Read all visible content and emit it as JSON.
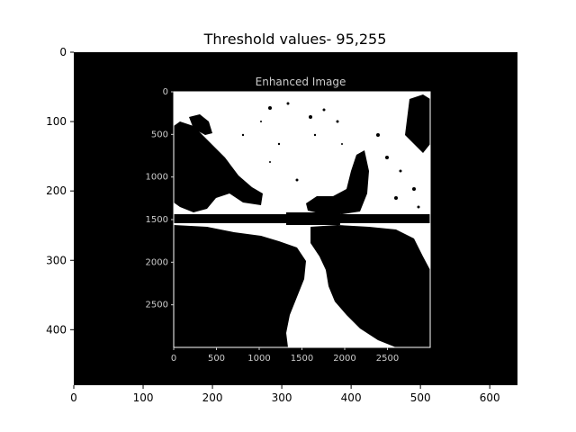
{
  "figure": {
    "title": "Threshold values- 95,255",
    "background": "#ffffff",
    "frame_color": "#000000"
  },
  "outer_axes": {
    "x_ticks": [
      "0",
      "100",
      "200",
      "300",
      "400",
      "500",
      "600"
    ],
    "x_tick_values": [
      0,
      100,
      200,
      300,
      400,
      500,
      600
    ],
    "y_ticks": [
      "0",
      "100",
      "200",
      "300",
      "400"
    ],
    "y_tick_values": [
      0,
      100,
      200,
      300,
      400
    ],
    "x_range": [
      0,
      640
    ],
    "y_range": [
      480,
      0
    ]
  },
  "inner_image": {
    "title": "Enhanced Image",
    "text_color": "#cccccc",
    "x_ticks": [
      "0",
      "500",
      "1000",
      "1500",
      "2000",
      "2500"
    ],
    "x_tick_values": [
      0,
      500,
      1000,
      1500,
      2000,
      2500
    ],
    "y_ticks": [
      "0",
      "500",
      "1000",
      "1500",
      "2000",
      "2500"
    ],
    "y_tick_values": [
      0,
      500,
      1000,
      1500,
      2000,
      2500
    ],
    "x_range": [
      0,
      3000
    ],
    "y_range": [
      3000,
      0
    ]
  }
}
